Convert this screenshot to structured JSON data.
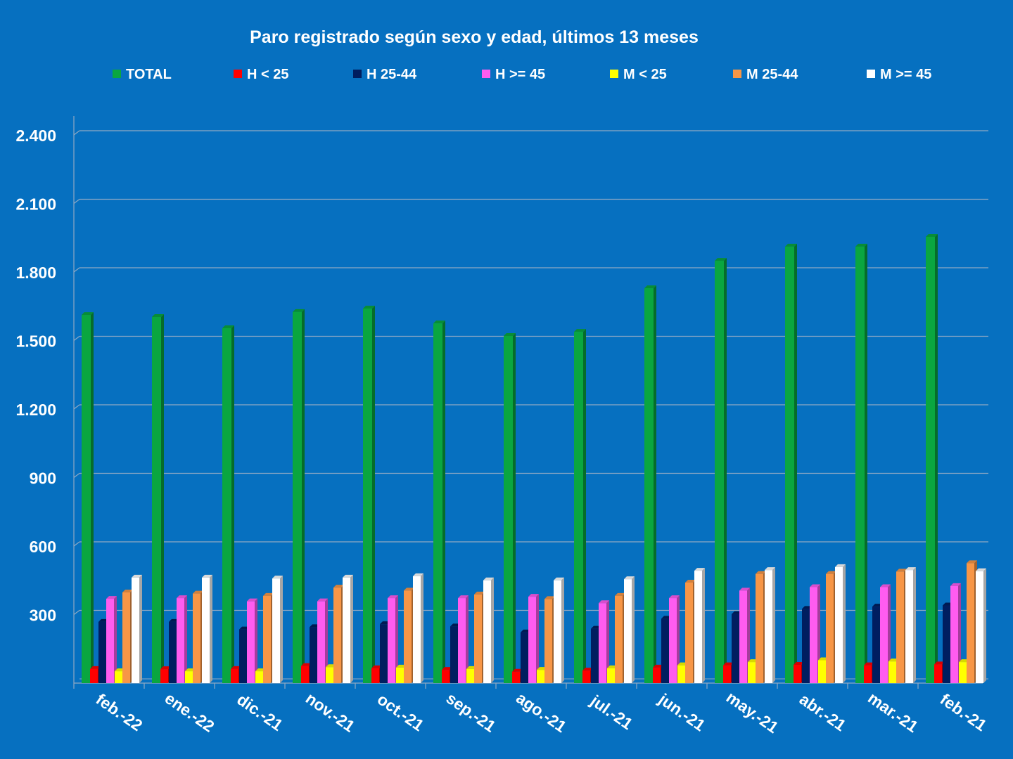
{
  "chart_data": {
    "type": "bar",
    "title": "Paro registrado según sexo y edad, últimos 13 meses",
    "xlabel": "",
    "ylabel": "",
    "ylim": [
      0,
      2400
    ],
    "yticks": [
      "2.400",
      "2.100",
      "1.800",
      "1.500",
      "1.200",
      "900",
      "600",
      "300"
    ],
    "ytick_values": [
      2400,
      2100,
      1800,
      1500,
      1200,
      900,
      600,
      300
    ],
    "grid": true,
    "legend_position": "top",
    "categories": [
      "feb.-22",
      "ene.-22",
      "dic.-21",
      "nov.-21",
      "oct.-21",
      "sep.-21",
      "ago.-21",
      "jul.-21",
      "jun.-21",
      "may.-21",
      "abr.-21",
      "mar.-21",
      "feb.-21"
    ],
    "series": [
      {
        "name": "TOTAL",
        "color": "#0aa640",
        "values": [
          1612,
          1603,
          1554,
          1625,
          1640,
          1575,
          1520,
          1538,
          1729,
          1849,
          1911,
          1911,
          1954
        ]
      },
      {
        "name": "H < 25",
        "color": "#ff0000",
        "values": [
          62,
          61,
          62,
          75,
          65,
          58,
          50,
          55,
          68,
          78,
          80,
          78,
          82
        ]
      },
      {
        "name": "H 25-44",
        "color": "#001e60",
        "values": [
          268,
          268,
          235,
          245,
          258,
          248,
          222,
          238,
          282,
          302,
          325,
          335,
          340
        ]
      },
      {
        "name": "H >= 45",
        "color": "#ff5cf0",
        "values": [
          369,
          372,
          358,
          358,
          372,
          372,
          378,
          350,
          372,
          405,
          420,
          420,
          425
        ]
      },
      {
        "name": "M < 25",
        "color": "#ffff00",
        "values": [
          52,
          52,
          52,
          70,
          68,
          62,
          58,
          65,
          78,
          92,
          100,
          95,
          92
        ]
      },
      {
        "name": "M 25-44",
        "color": "#f79646",
        "values": [
          397,
          392,
          382,
          418,
          405,
          388,
          368,
          382,
          440,
          478,
          478,
          488,
          525
        ]
      },
      {
        "name": "M >= 45",
        "color": "#ffffff",
        "values": [
          462,
          462,
          458,
          462,
          468,
          450,
          450,
          455,
          492,
          495,
          508,
          495,
          490
        ]
      }
    ]
  }
}
